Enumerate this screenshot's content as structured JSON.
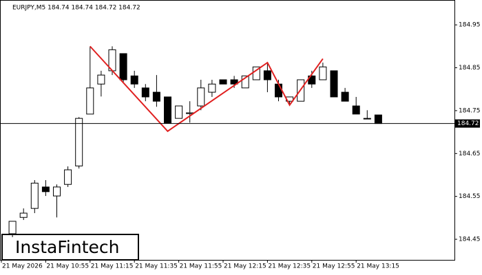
{
  "chart_data": {
    "type": "candlestick",
    "title": "EURJPY,M5  184.74 184.74 184.72 184.72",
    "logo": "InstaFintech",
    "categories": [
      "21 May 2026",
      null,
      null,
      null,
      "21 May 10:55",
      null,
      null,
      null,
      "21 May 11:15",
      null,
      null,
      null,
      "21 May 11:35",
      null,
      null,
      null,
      "21 May 11:55",
      null,
      null,
      null,
      "21 May 12:15",
      null,
      null,
      null,
      "21 May 12:35",
      null,
      null,
      null,
      "21 May 12:55",
      null,
      null,
      null,
      "21 May 13:15",
      null,
      null
    ],
    "open": [
      null,
      184.463,
      184.501,
      184.522,
      184.572,
      184.551,
      184.578,
      184.621,
      184.742,
      184.812,
      184.843,
      184.883,
      184.831,
      184.803,
      184.793,
      184.782,
      184.732,
      184.743,
      184.761,
      184.793,
      184.822,
      184.822,
      184.803,
      184.822,
      184.843,
      184.812,
      184.772,
      184.772,
      184.831,
      184.822,
      184.843,
      184.793,
      184.761,
      184.732,
      184.74
    ],
    "high": [
      null,
      184.492,
      184.522,
      184.588,
      184.588,
      184.578,
      184.62,
      184.735,
      184.9,
      184.843,
      184.9,
      184.883,
      184.843,
      184.812,
      184.833,
      184.782,
      184.761,
      184.772,
      184.822,
      184.822,
      184.822,
      184.831,
      184.831,
      184.852,
      184.862,
      184.822,
      184.782,
      184.822,
      184.843,
      184.862,
      184.843,
      184.803,
      184.782,
      184.751,
      184.74
    ],
    "low": [
      null,
      184.455,
      184.495,
      184.511,
      184.551,
      184.501,
      184.572,
      184.615,
      184.742,
      184.783,
      184.833,
      184.815,
      184.803,
      184.772,
      184.759,
      184.721,
      184.732,
      184.722,
      184.751,
      184.782,
      184.812,
      184.803,
      184.803,
      184.822,
      184.793,
      184.772,
      184.763,
      184.772,
      184.803,
      184.822,
      184.782,
      184.772,
      184.742,
      184.732,
      184.72
    ],
    "close": [
      null,
      184.492,
      184.511,
      184.581,
      184.561,
      184.572,
      184.612,
      184.732,
      184.803,
      184.833,
      184.892,
      184.822,
      184.812,
      184.782,
      184.772,
      184.721,
      184.761,
      184.745,
      184.803,
      184.812,
      184.812,
      184.812,
      184.831,
      184.852,
      184.822,
      184.782,
      184.782,
      184.822,
      184.812,
      184.852,
      184.782,
      184.772,
      184.742,
      184.732,
      184.72
    ],
    "pattern": {
      "color": "#e02020",
      "x": [
        8,
        15,
        24,
        26,
        29
      ],
      "values": [
        184.9,
        184.702,
        184.862,
        184.763,
        184.871
      ]
    },
    "current_price": 184.72,
    "ylim": [
      184.402,
      185.008
    ],
    "yticks": [
      184.45,
      184.55,
      184.65,
      184.75,
      184.85,
      184.95
    ]
  }
}
